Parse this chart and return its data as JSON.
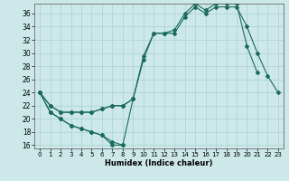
{
  "xlabel": "Humidex (Indice chaleur)",
  "background_color": "#cce8e8",
  "grid_color": "#b0d4d4",
  "line_color": "#1a6b5a",
  "xlim": [
    -0.5,
    23.5
  ],
  "ylim": [
    15.5,
    37.5
  ],
  "yticks": [
    16,
    18,
    20,
    22,
    24,
    26,
    28,
    30,
    32,
    34,
    36
  ],
  "xticks": [
    0,
    1,
    2,
    3,
    4,
    5,
    6,
    7,
    8,
    9,
    10,
    11,
    12,
    13,
    14,
    15,
    16,
    17,
    18,
    19,
    20,
    21,
    22,
    23
  ],
  "series": [
    {
      "x": [
        0,
        1,
        2,
        3,
        4,
        5,
        6,
        7,
        8
      ],
      "y": [
        24,
        21,
        20,
        19,
        18.5,
        18,
        17.5,
        16.5,
        16
      ]
    },
    {
      "x": [
        0,
        1,
        2,
        3,
        4,
        5,
        6,
        7,
        8,
        9
      ],
      "y": [
        24,
        21,
        20,
        19,
        18.5,
        18,
        17.5,
        16,
        16,
        23
      ]
    },
    {
      "x": [
        0,
        1,
        2,
        3,
        4,
        5,
        6,
        7,
        8,
        9,
        10,
        11,
        12,
        13,
        14,
        15,
        16,
        17,
        18,
        19,
        20,
        21,
        22,
        23
      ],
      "y": [
        24,
        22,
        21,
        21,
        21,
        21,
        21.5,
        22,
        22,
        23,
        29,
        33,
        33,
        33,
        35.5,
        37,
        36,
        37,
        37,
        37,
        34,
        30,
        26.5,
        24
      ]
    },
    {
      "x": [
        0,
        1,
        2,
        3,
        4,
        5,
        6,
        7,
        8,
        9,
        10,
        11,
        12,
        13,
        14,
        15,
        16,
        17,
        18,
        19,
        20,
        21
      ],
      "y": [
        24,
        22,
        21,
        21,
        21,
        21,
        21.5,
        22,
        22,
        23,
        29.5,
        33,
        33,
        33.5,
        36,
        37.5,
        36.5,
        37.5,
        37.5,
        37.5,
        31,
        27
      ]
    }
  ]
}
